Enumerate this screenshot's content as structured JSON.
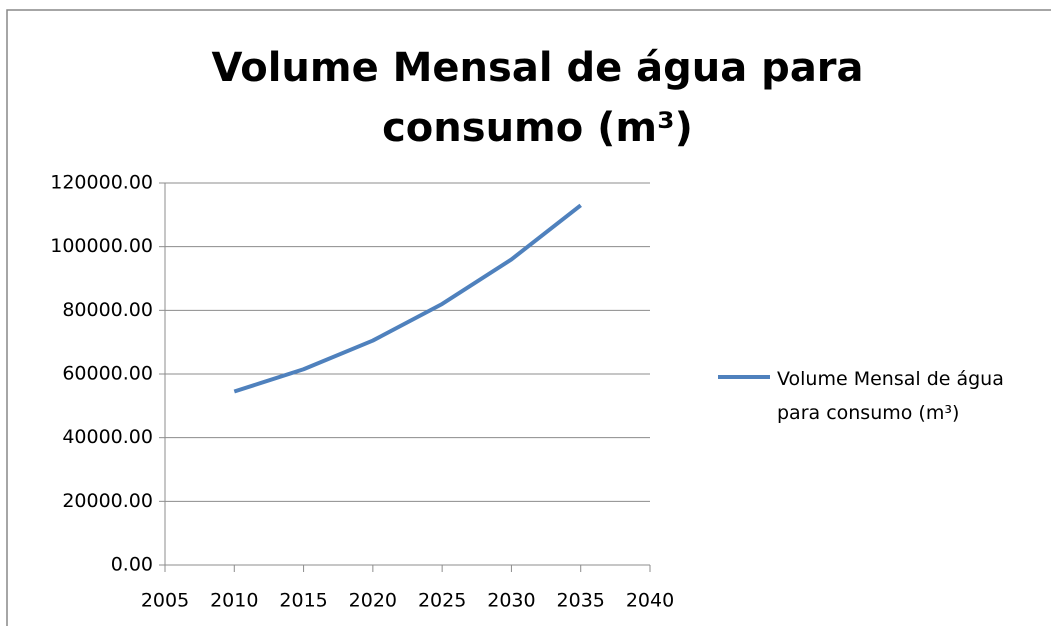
{
  "chart_data": {
    "type": "line",
    "title": "Volume Mensal de água para consumo (m³)",
    "x": [
      2010,
      2015,
      2020,
      2025,
      2030,
      2035
    ],
    "series": [
      {
        "name": "Volume Mensal de água para consumo (m³)",
        "color": "#4f81bd",
        "values": [
          54500,
          61500,
          70500,
          82000,
          96000,
          113000
        ]
      }
    ],
    "xlim": [
      2005,
      2040
    ],
    "xticks": [
      2005,
      2010,
      2015,
      2020,
      2025,
      2030,
      2035,
      2040
    ],
    "ylim": [
      0,
      120000
    ],
    "yticks": [
      {
        "value": 0,
        "label": "0.00"
      },
      {
        "value": 20000,
        "label": "20000.00"
      },
      {
        "value": 40000,
        "label": "40000.00"
      },
      {
        "value": 60000,
        "label": "60000.00"
      },
      {
        "value": 80000,
        "label": "80000.00"
      },
      {
        "value": 100000,
        "label": "100000.00"
      },
      {
        "value": 120000,
        "label": "120000.00"
      }
    ],
    "grid": true,
    "legend": "right"
  }
}
